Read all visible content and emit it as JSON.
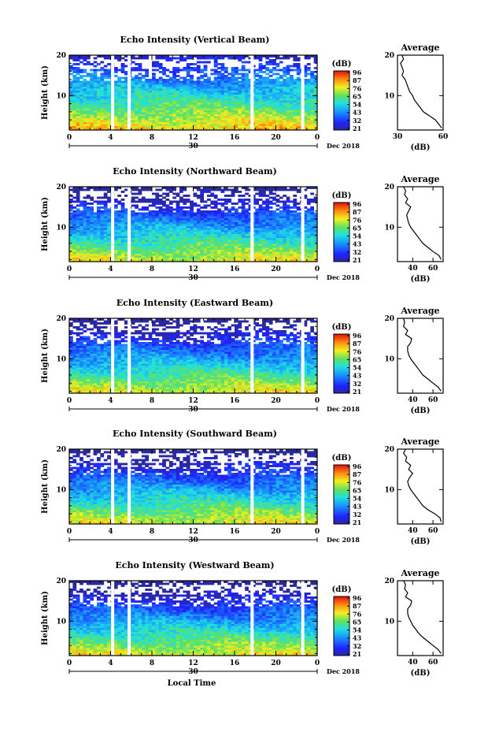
{
  "chart_data": {
    "type": "heatmap",
    "xaxis": {
      "label": "Local Time",
      "ticks": [
        "0",
        "4",
        "8",
        "12",
        "16",
        "20",
        "0"
      ],
      "range": [
        0,
        24
      ],
      "date_marker": "30",
      "date_label": "Dec 2018"
    },
    "yaxis": {
      "label": "Height (km)",
      "ticks": [
        "20",
        "10"
      ],
      "range": [
        1.5,
        20
      ]
    },
    "colorbar": {
      "unit": "(dB)",
      "ticks": [
        "96",
        "87",
        "76",
        "65",
        "54",
        "43",
        "32",
        "21"
      ],
      "range": [
        21,
        96
      ],
      "colormap": "jet"
    },
    "average_panel": {
      "title": "Average",
      "xlabel": "(dB)"
    },
    "data_gaps_hours": [
      4.2,
      5.8,
      17.7,
      22.6
    ],
    "panels": [
      {
        "title": "Echo Intensity (Vertical Beam)",
        "average_xticks": [
          "30",
          "60"
        ],
        "average_xrange": [
          30,
          60
        ],
        "average_profile": {
          "height_km": [
            2,
            3,
            4,
            5,
            6,
            7,
            8,
            9,
            10,
            11,
            12,
            13,
            14,
            15,
            16,
            17,
            18,
            19,
            20
          ],
          "db": [
            59,
            57,
            55,
            51,
            47,
            45,
            43,
            41,
            40,
            38,
            37,
            36,
            35,
            33,
            34,
            33,
            32,
            34,
            33
          ]
        }
      },
      {
        "title": "Echo Intensity (Northward Beam)",
        "average_xticks": [
          "40",
          "60"
        ],
        "average_xrange": [
          25,
          70
        ],
        "average_profile": {
          "height_km": [
            2,
            3,
            4,
            5,
            6,
            7,
            8,
            9,
            10,
            11,
            12,
            13,
            14,
            15,
            16,
            17,
            18,
            19,
            20
          ],
          "db": [
            68,
            66,
            60,
            55,
            50,
            47,
            44,
            41,
            38,
            36,
            35,
            34,
            36,
            38,
            33,
            35,
            32,
            33,
            31
          ]
        }
      },
      {
        "title": "Echo Intensity (Eastward Beam)",
        "average_xticks": [
          "40",
          "60"
        ],
        "average_xrange": [
          25,
          70
        ],
        "average_profile": {
          "height_km": [
            2,
            3,
            4,
            5,
            6,
            7,
            8,
            9,
            10,
            11,
            12,
            13,
            14,
            15,
            16,
            17,
            18,
            19,
            20
          ],
          "db": [
            68,
            65,
            60,
            55,
            50,
            47,
            44,
            41,
            38,
            36,
            35,
            35,
            38,
            39,
            33,
            35,
            31,
            32,
            31
          ]
        }
      },
      {
        "title": "Echo Intensity (Southward Beam)",
        "average_xticks": [
          "40",
          "60"
        ],
        "average_xrange": [
          25,
          70
        ],
        "average_profile": {
          "height_km": [
            2,
            3,
            4,
            5,
            6,
            7,
            8,
            9,
            10,
            11,
            12,
            13,
            14,
            15,
            16,
            17,
            18,
            19,
            20
          ],
          "db": [
            68,
            67,
            62,
            55,
            50,
            47,
            44,
            41,
            38,
            36,
            35,
            37,
            40,
            36,
            38,
            33,
            34,
            31,
            33
          ]
        }
      },
      {
        "title": "Echo Intensity (Westward Beam)",
        "average_xticks": [
          "40",
          "60"
        ],
        "average_xrange": [
          25,
          70
        ],
        "average_profile": {
          "height_km": [
            2,
            3,
            4,
            5,
            6,
            7,
            8,
            9,
            10,
            11,
            12,
            13,
            14,
            15,
            16,
            17,
            18,
            19,
            20
          ],
          "db": [
            68,
            65,
            60,
            55,
            50,
            46,
            43,
            40,
            38,
            36,
            35,
            35,
            38,
            39,
            33,
            35,
            32,
            33,
            31
          ]
        }
      }
    ]
  }
}
